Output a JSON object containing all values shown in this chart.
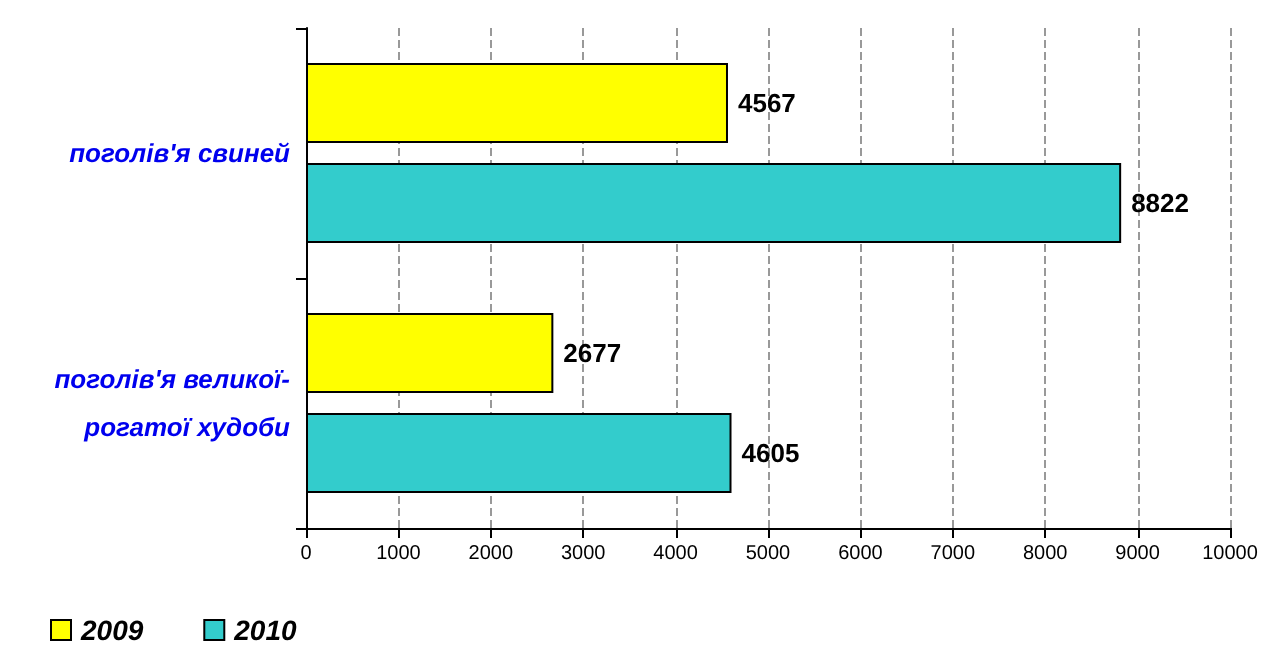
{
  "chart_data": {
    "type": "bar",
    "orientation": "horizontal",
    "categories": [
      "поголів'я свиней",
      "поголів'я великої-рогатої худоби"
    ],
    "series": [
      {
        "name": "2009",
        "color": "#ffff00",
        "values": [
          4567,
          2677
        ]
      },
      {
        "name": "2010",
        "color": "#33cccc",
        "values": [
          8822,
          4605
        ]
      }
    ],
    "xlim": [
      0,
      10000
    ],
    "xticks": [
      0,
      1000,
      2000,
      3000,
      4000,
      5000,
      6000,
      7000,
      8000,
      9000,
      10000
    ],
    "grid": "x",
    "legend": "bottom left",
    "data_labels": true
  }
}
